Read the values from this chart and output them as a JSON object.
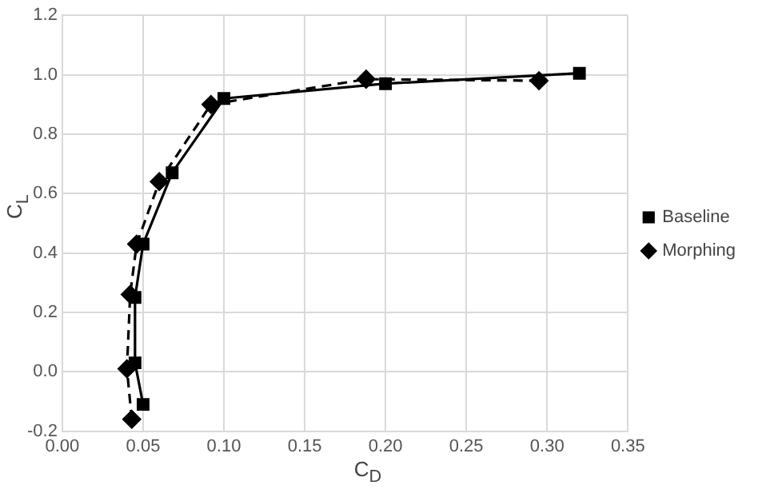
{
  "chart_data": {
    "type": "line",
    "xlabel": "C$_{D}$",
    "ylabel": "C$_{L}$",
    "xlim": [
      0,
      0.35
    ],
    "xticks": [
      {
        "value": 0,
        "label": "0.00"
      },
      {
        "value": 0.05,
        "label": "0.05"
      },
      {
        "value": 0.1,
        "label": "0.10"
      },
      {
        "value": 0.15,
        "label": "0.15"
      },
      {
        "value": 0.2,
        "label": "0.20"
      },
      {
        "value": 0.25,
        "label": "0.25"
      },
      {
        "value": 0.3,
        "label": "0.30"
      },
      {
        "value": 0.35,
        "label": "0.35"
      }
    ],
    "ylim": [
      -0.2,
      1.2
    ],
    "yticks": [
      {
        "value": -0.2,
        "label": "-0.2"
      },
      {
        "value": 0,
        "label": "0.0"
      },
      {
        "value": 0.2,
        "label": "0.2"
      },
      {
        "value": 0.4,
        "label": "0.4"
      },
      {
        "value": 0.6,
        "label": "0.6"
      },
      {
        "value": 0.8,
        "label": "0.8"
      },
      {
        "value": 1,
        "label": "1.0"
      },
      {
        "value": 1.2,
        "label": "1.2"
      }
    ],
    "grid": true,
    "legend": "right",
    "series": [
      {
        "name": "Baseline",
        "color": "#000000",
        "marker": "square",
        "line_style": "solid",
        "x": [
          0.05,
          0.045,
          0.045,
          0.05,
          0.068,
          0.1,
          0.2,
          0.32
        ],
        "values": [
          -0.11,
          0.03,
          0.25,
          0.43,
          0.67,
          0.92,
          0.97,
          1.005
        ]
      },
      {
        "name": "Morphing",
        "color": "#000000",
        "marker": "diamond",
        "line_style": "dashed",
        "x": [
          0.043,
          0.04,
          0.042,
          0.046,
          0.06,
          0.092,
          0.188,
          0.295
        ],
        "values": [
          -0.16,
          0.01,
          0.26,
          0.43,
          0.64,
          0.9,
          0.985,
          0.98
        ]
      }
    ]
  }
}
